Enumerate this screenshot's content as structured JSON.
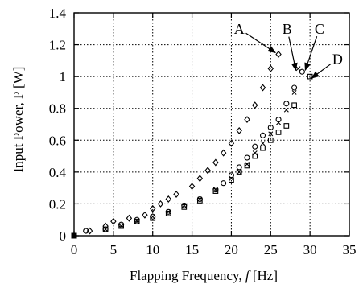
{
  "chart_data": {
    "type": "scatter",
    "xlabel_prefix": "Flapping Frequency, ",
    "xlabel_symbol": "f",
    "xlabel_suffix": "  [Hz]",
    "ylabel": "Input Power, P  [W]",
    "xlim": [
      0,
      35
    ],
    "ylim": [
      0,
      1.4
    ],
    "xticks": [
      "0",
      "5",
      "10",
      "15",
      "20",
      "25",
      "30",
      "35"
    ],
    "yticks": [
      "0",
      "0.2",
      "0.4",
      "0.6",
      "0.8",
      "1",
      "1.2",
      "1.4"
    ],
    "grid": true,
    "series": [
      {
        "marker": "diamond",
        "points": [
          [
            0,
            0
          ],
          [
            2,
            0.03
          ],
          [
            4,
            0.06
          ],
          [
            5,
            0.09
          ],
          [
            7,
            0.11
          ],
          [
            9,
            0.13
          ],
          [
            10,
            0.17
          ],
          [
            11,
            0.2
          ],
          [
            12,
            0.23
          ],
          [
            13,
            0.26
          ],
          [
            15,
            0.31
          ],
          [
            16,
            0.36
          ],
          [
            17,
            0.41
          ],
          [
            18,
            0.46
          ],
          [
            19,
            0.52
          ],
          [
            20,
            0.58
          ],
          [
            21,
            0.66
          ],
          [
            22,
            0.73
          ],
          [
            23,
            0.82
          ],
          [
            24,
            0.93
          ],
          [
            25,
            1.05
          ],
          [
            26,
            1.14
          ]
        ]
      },
      {
        "marker": "circle",
        "points": [
          [
            0,
            0
          ],
          [
            1.5,
            0.03
          ],
          [
            4,
            0.04
          ],
          [
            6,
            0.07
          ],
          [
            8,
            0.1
          ],
          [
            10,
            0.12
          ],
          [
            12,
            0.15
          ],
          [
            14,
            0.19
          ],
          [
            16,
            0.23
          ],
          [
            18,
            0.29
          ],
          [
            19,
            0.33
          ],
          [
            20,
            0.38
          ],
          [
            21,
            0.43
          ],
          [
            22,
            0.49
          ],
          [
            23,
            0.56
          ],
          [
            24,
            0.63
          ],
          [
            25,
            0.68
          ],
          [
            26,
            0.73
          ],
          [
            27,
            0.83
          ],
          [
            28,
            0.93
          ],
          [
            29,
            1.03
          ]
        ]
      },
      {
        "marker": "cross",
        "points": [
          [
            0,
            0
          ],
          [
            4,
            0.04
          ],
          [
            6,
            0.06
          ],
          [
            8,
            0.09
          ],
          [
            10,
            0.12
          ],
          [
            12,
            0.15
          ],
          [
            14,
            0.19
          ],
          [
            16,
            0.23
          ],
          [
            18,
            0.29
          ],
          [
            20,
            0.36
          ],
          [
            21,
            0.4
          ],
          [
            22,
            0.45
          ],
          [
            23,
            0.52
          ],
          [
            24,
            0.58
          ],
          [
            25,
            0.64
          ],
          [
            26,
            0.71
          ],
          [
            27,
            0.79
          ],
          [
            28,
            0.9
          ],
          [
            28.5,
            1.05
          ]
        ]
      },
      {
        "marker": "square",
        "points": [
          [
            0,
            0
          ],
          [
            4,
            0.04
          ],
          [
            6,
            0.06
          ],
          [
            8,
            0.09
          ],
          [
            10,
            0.11
          ],
          [
            12,
            0.14
          ],
          [
            14,
            0.18
          ],
          [
            16,
            0.22
          ],
          [
            18,
            0.28
          ],
          [
            20,
            0.35
          ],
          [
            21,
            0.4
          ],
          [
            22,
            0.44
          ],
          [
            23,
            0.5
          ],
          [
            24,
            0.55
          ],
          [
            25,
            0.6
          ],
          [
            26,
            0.65
          ],
          [
            27,
            0.69
          ],
          [
            28,
            0.82
          ],
          [
            30,
            1.0
          ]
        ]
      }
    ],
    "annotations": [
      {
        "label": "A",
        "text_at": [
          21,
          1.3
        ],
        "arrow_to": [
          25.6,
          1.15
        ]
      },
      {
        "label": "B",
        "text_at": [
          27.1,
          1.3
        ],
        "arrow_to": [
          28.2,
          1.04
        ]
      },
      {
        "label": "C",
        "text_at": [
          31.2,
          1.3
        ],
        "arrow_to": [
          29.4,
          1.04
        ]
      },
      {
        "label": "D",
        "text_at": [
          33.5,
          1.11
        ],
        "arrow_to": [
          30.2,
          0.99
        ]
      }
    ]
  }
}
